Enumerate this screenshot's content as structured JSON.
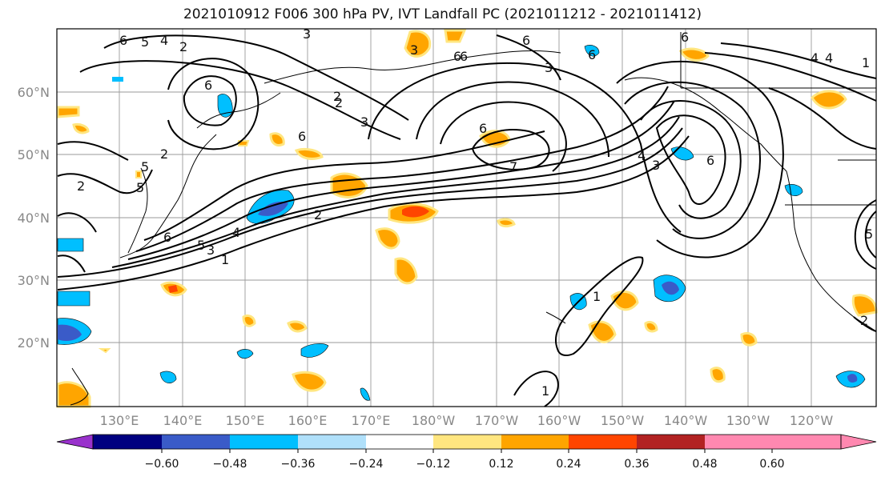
{
  "title": "2021010912 F006 300 hPa PV, IVT Landfall PC (2021011212 - 2021011412)",
  "lat_labels": [
    "60°N",
    "50°N",
    "40°N",
    "30°N",
    "20°N"
  ],
  "lon_labels": [
    "130°E",
    "140°E",
    "150°E",
    "160°E",
    "170°E",
    "180°W",
    "170°W",
    "160°W",
    "150°W",
    "140°W",
    "130°W",
    "120°W"
  ],
  "colorbar": {
    "ticks": [
      "−0.60",
      "−0.48",
      "−0.36",
      "−0.24",
      "−0.12",
      "0.12",
      "0.24",
      "0.36",
      "0.48",
      "0.60"
    ],
    "colors": [
      "#9932cc",
      "#000080",
      "#3a5bc8",
      "#00bfff",
      "#b0e0fa",
      "#ffffff",
      "#ffe680",
      "#ffa500",
      "#ff4500",
      "#b22222",
      "#ff88b0"
    ]
  },
  "contour_labels": [
    "6",
    "5",
    "4",
    "2",
    "3",
    "6",
    "2",
    "3",
    "2",
    "6",
    "5",
    "6",
    "6",
    "6",
    "3",
    "3",
    "6",
    "4",
    "3",
    "2",
    "1",
    "6",
    "7",
    "6",
    "4",
    "5",
    "6",
    "2",
    "3",
    "4",
    "1",
    "6",
    "5",
    "4",
    "2",
    "5",
    "1",
    "1",
    "2"
  ]
}
